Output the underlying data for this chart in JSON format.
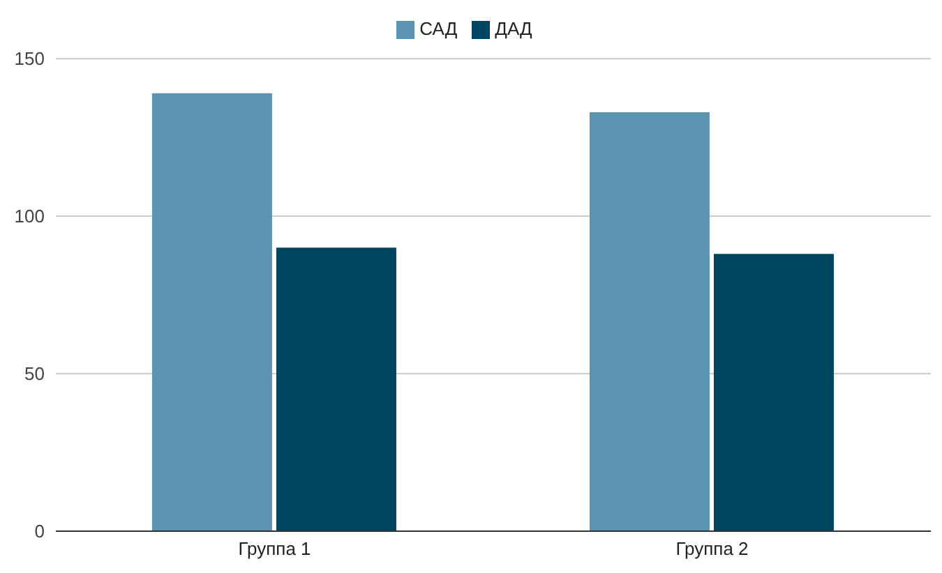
{
  "chart_data": {
    "type": "bar",
    "categories": [
      "Группа 1",
      "Группа 2"
    ],
    "series": [
      {
        "name": "САД",
        "color": "#5b93b0",
        "values": [
          139,
          133
        ]
      },
      {
        "name": "ДАД",
        "color": "#004560",
        "values": [
          90,
          88
        ]
      }
    ],
    "ylim": [
      0,
      150
    ],
    "yticks": [
      0,
      50,
      100,
      150
    ],
    "grid": "y",
    "legend": "top"
  }
}
